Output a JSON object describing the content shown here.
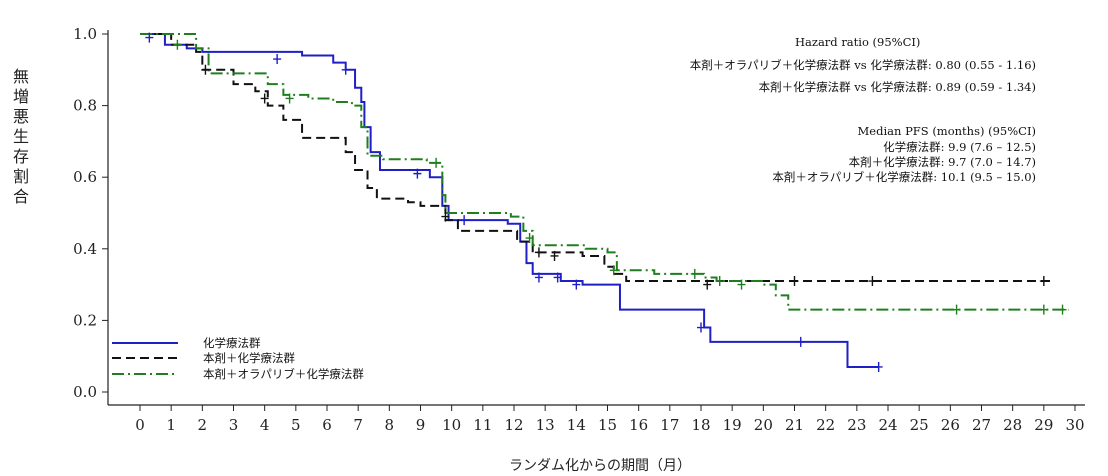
{
  "chart_data": {
    "type": "line",
    "title": "",
    "xlabel": "ランダム化からの期間（月）",
    "ylabel": "無増悪生存割合",
    "xlim": [
      0,
      30
    ],
    "ylim": [
      0,
      1.0
    ],
    "xticks": [
      0,
      1,
      2,
      3,
      4,
      5,
      6,
      7,
      8,
      9,
      10,
      11,
      12,
      13,
      14,
      15,
      16,
      17,
      18,
      19,
      20,
      21,
      22,
      23,
      24,
      25,
      26,
      27,
      28,
      29,
      30
    ],
    "yticks": [
      0.0,
      0.2,
      0.4,
      0.6,
      0.8,
      1.0
    ],
    "legend_position": "bottom-left",
    "grid": false,
    "annotations": {
      "hr_title": "Hazard ratio (95%CI)",
      "hr_lines": [
        "本剤＋オラパリブ＋化学療法群 vs 化学療法群: 0.80 (0.55 - 1.16)",
        "本剤＋化学療法群 vs 化学療法群: 0.89 (0.59 - 1.34)"
      ],
      "median_title": "Median PFS (months) (95%CI)",
      "median_lines": [
        "化学療法群: 9.9 (7.6 – 12.5)",
        "本剤＋化学療法群: 9.7 (7.0 – 14.7)",
        "本剤＋オラパリブ＋化学療法群: 10.1 (9.5 – 15.0)"
      ]
    },
    "series": [
      {
        "name": "化学療法群",
        "color": "#1f1fc8",
        "dash": "solid",
        "points": [
          [
            0,
            1.0
          ],
          [
            0.8,
            0.97
          ],
          [
            1.5,
            0.96
          ],
          [
            2.0,
            0.95
          ],
          [
            3.5,
            0.95
          ],
          [
            5.2,
            0.94
          ],
          [
            6.2,
            0.92
          ],
          [
            6.6,
            0.9
          ],
          [
            6.9,
            0.85
          ],
          [
            7.1,
            0.81
          ],
          [
            7.2,
            0.74
          ],
          [
            7.4,
            0.67
          ],
          [
            7.7,
            0.62
          ],
          [
            8.9,
            0.62
          ],
          [
            9.3,
            0.6
          ],
          [
            9.7,
            0.52
          ],
          [
            9.9,
            0.48
          ],
          [
            11.2,
            0.48
          ],
          [
            11.8,
            0.47
          ],
          [
            12.2,
            0.42
          ],
          [
            12.4,
            0.36
          ],
          [
            12.6,
            0.33
          ],
          [
            13.5,
            0.31
          ],
          [
            14.2,
            0.3
          ],
          [
            15.2,
            0.3
          ],
          [
            15.4,
            0.23
          ],
          [
            18.0,
            0.23
          ],
          [
            18.1,
            0.18
          ],
          [
            18.3,
            0.14
          ],
          [
            20.5,
            0.14
          ],
          [
            22.5,
            0.14
          ],
          [
            22.7,
            0.07
          ],
          [
            23.7,
            0.07
          ]
        ],
        "censors": [
          [
            0.3,
            0.99
          ],
          [
            4.4,
            0.93
          ],
          [
            6.6,
            0.9
          ],
          [
            8.9,
            0.61
          ],
          [
            10.4,
            0.48
          ],
          [
            12.8,
            0.32
          ],
          [
            13.4,
            0.32
          ],
          [
            14.0,
            0.3
          ],
          [
            18.0,
            0.18
          ],
          [
            21.2,
            0.14
          ],
          [
            23.7,
            0.07
          ]
        ]
      },
      {
        "name": "本剤＋化学療法群",
        "color": "#111111",
        "dash": "9,5",
        "points": [
          [
            0,
            1.0
          ],
          [
            1.0,
            0.97
          ],
          [
            1.8,
            0.95
          ],
          [
            2.0,
            0.9
          ],
          [
            3.0,
            0.86
          ],
          [
            3.7,
            0.84
          ],
          [
            4.1,
            0.8
          ],
          [
            4.6,
            0.76
          ],
          [
            5.2,
            0.71
          ],
          [
            6.2,
            0.71
          ],
          [
            6.6,
            0.67
          ],
          [
            6.9,
            0.62
          ],
          [
            7.3,
            0.57
          ],
          [
            7.6,
            0.54
          ],
          [
            8.6,
            0.53
          ],
          [
            9.0,
            0.52
          ],
          [
            9.8,
            0.48
          ],
          [
            10.2,
            0.45
          ],
          [
            11.8,
            0.45
          ],
          [
            12.1,
            0.42
          ],
          [
            12.6,
            0.39
          ],
          [
            14.2,
            0.38
          ],
          [
            14.9,
            0.35
          ],
          [
            15.2,
            0.33
          ],
          [
            15.6,
            0.31
          ],
          [
            17.0,
            0.31
          ],
          [
            29.2,
            0.31
          ]
        ],
        "censors": [
          [
            2.1,
            0.9
          ],
          [
            4.0,
            0.82
          ],
          [
            9.8,
            0.49
          ],
          [
            12.8,
            0.39
          ],
          [
            13.3,
            0.38
          ],
          [
            18.2,
            0.3
          ],
          [
            21.0,
            0.31
          ],
          [
            23.5,
            0.31
          ],
          [
            29.0,
            0.31
          ]
        ]
      },
      {
        "name": "本剤＋オラパリブ＋化学療法群",
        "color": "#1f7f1f",
        "dash": "12,4,2,4",
        "points": [
          [
            0,
            1.0
          ],
          [
            1.8,
            0.96
          ],
          [
            2.2,
            0.89
          ],
          [
            3.5,
            0.89
          ],
          [
            4.1,
            0.86
          ],
          [
            4.6,
            0.83
          ],
          [
            5.4,
            0.82
          ],
          [
            6.2,
            0.81
          ],
          [
            6.8,
            0.8
          ],
          [
            7.1,
            0.74
          ],
          [
            7.3,
            0.66
          ],
          [
            7.8,
            0.65
          ],
          [
            8.6,
            0.65
          ],
          [
            9.2,
            0.64
          ],
          [
            9.7,
            0.55
          ],
          [
            9.8,
            0.5
          ],
          [
            11.2,
            0.5
          ],
          [
            11.9,
            0.49
          ],
          [
            12.3,
            0.45
          ],
          [
            12.6,
            0.41
          ],
          [
            13.2,
            0.41
          ],
          [
            14.3,
            0.4
          ],
          [
            15.0,
            0.39
          ],
          [
            15.3,
            0.34
          ],
          [
            16.5,
            0.33
          ],
          [
            17.8,
            0.33
          ],
          [
            18.1,
            0.32
          ],
          [
            18.5,
            0.31
          ],
          [
            20.0,
            0.3
          ],
          [
            20.4,
            0.27
          ],
          [
            20.8,
            0.23
          ],
          [
            21.5,
            0.23
          ],
          [
            29.8,
            0.23
          ]
        ],
        "censors": [
          [
            1.2,
            0.97
          ],
          [
            4.8,
            0.82
          ],
          [
            9.5,
            0.64
          ],
          [
            12.5,
            0.43
          ],
          [
            15.2,
            0.34
          ],
          [
            17.8,
            0.33
          ],
          [
            18.6,
            0.31
          ],
          [
            19.3,
            0.3
          ],
          [
            26.2,
            0.23
          ],
          [
            29.0,
            0.23
          ],
          [
            29.6,
            0.23
          ]
        ]
      }
    ]
  }
}
